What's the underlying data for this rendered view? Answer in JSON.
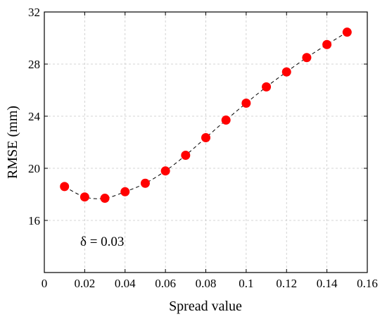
{
  "chart_data": {
    "type": "scatter",
    "xlabel": "Spread value",
    "ylabel": "RMSE (mm)",
    "xlim": [
      0,
      0.16
    ],
    "ylim": [
      12,
      32
    ],
    "xticks": [
      0,
      0.02,
      0.04,
      0.06,
      0.08,
      0.1,
      0.12,
      0.14,
      0.16
    ],
    "xtick_labels": [
      "0",
      "0.02",
      "0.04",
      "0.06",
      "0.08",
      "0.1",
      "0.12",
      "0.14",
      "0.16"
    ],
    "yticks": [
      16,
      20,
      24,
      28,
      32
    ],
    "ytick_labels": [
      "16",
      "20",
      "24",
      "28",
      "32"
    ],
    "grid": true,
    "series": [
      {
        "x": [
          0.01,
          0.02,
          0.03,
          0.04,
          0.05,
          0.06,
          0.07,
          0.08,
          0.09,
          0.1,
          0.11,
          0.12,
          0.13,
          0.14,
          0.15
        ],
        "y": [
          18.6,
          17.8,
          17.7,
          18.2,
          18.85,
          19.8,
          21.0,
          22.35,
          23.7,
          25.0,
          26.25,
          27.4,
          28.5,
          29.5,
          30.45
        ],
        "marker_color": "#ff0000",
        "line_style": "dashed",
        "line_color": "#000000"
      }
    ],
    "annotations": [
      {
        "text": "δ = 0.03",
        "x": 0.03,
        "y": 17.7
      }
    ]
  }
}
